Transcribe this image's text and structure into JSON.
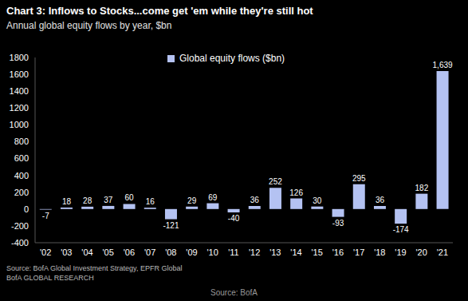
{
  "chart_data": {
    "type": "bar",
    "title": "Chart 3: Inflows to Stocks...come get 'em while they're still hot",
    "subtitle": "Annual global equity flows by year, $bn",
    "categories": [
      "'02",
      "'03",
      "'04",
      "'05",
      "'06",
      "'07",
      "'08",
      "'09",
      "'10",
      "'11",
      "'12",
      "'13",
      "'14",
      "'15",
      "'16",
      "'17",
      "'18",
      "'19",
      "'20",
      "'21"
    ],
    "series": [
      {
        "name": "Global equity flows ($bn)",
        "color": "#b4c2f2",
        "values": [
          -7,
          18,
          28,
          37,
          60,
          16,
          -121,
          29,
          69,
          -40,
          36,
          252,
          126,
          30,
          -93,
          295,
          36,
          -174,
          182,
          1639
        ],
        "value_labels": [
          "-7",
          "18",
          "28",
          "37",
          "60",
          "16",
          "-121",
          "29",
          "69",
          "-40",
          "36",
          "252",
          "126",
          "30",
          "-93",
          "295",
          "36",
          "-174",
          "182",
          "1,639"
        ]
      }
    ],
    "ylim": [
      -400,
      1800
    ],
    "yticks": [
      -400,
      -200,
      0,
      200,
      400,
      600,
      800,
      1000,
      1200,
      1400,
      1600,
      1800
    ],
    "grid": false,
    "legend": "top",
    "data_labels": true,
    "source": [
      "Source: BofA Global Investment Strategy, EPFR Global",
      "BofA GLOBAL RESEARCH"
    ],
    "caption": "Source: BofA"
  }
}
